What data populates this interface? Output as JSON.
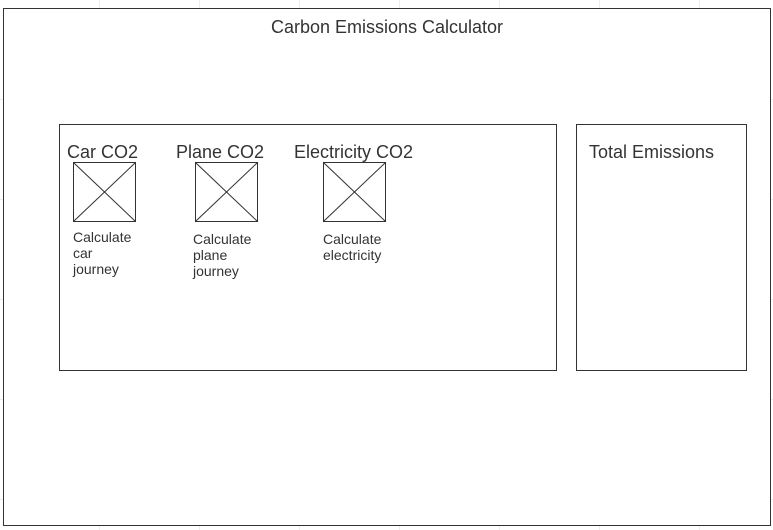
{
  "title": "Carbon Emissions Calculator",
  "calculators": [
    {
      "heading": "Car CO2",
      "caption": "Calculate\ncar\njourney",
      "icon": "image-placeholder-icon"
    },
    {
      "heading": "Plane CO2",
      "caption": "Calculate\nplane\njourney",
      "icon": "image-placeholder-icon"
    },
    {
      "heading": "Electricity CO2",
      "caption": "Calculate\nelectricity",
      "icon": "image-placeholder-icon"
    }
  ],
  "total": {
    "heading": "Total Emissions"
  },
  "colors": {
    "stroke": "#333333",
    "text": "#333333",
    "grid": "#ededed",
    "background": "#ffffff"
  }
}
